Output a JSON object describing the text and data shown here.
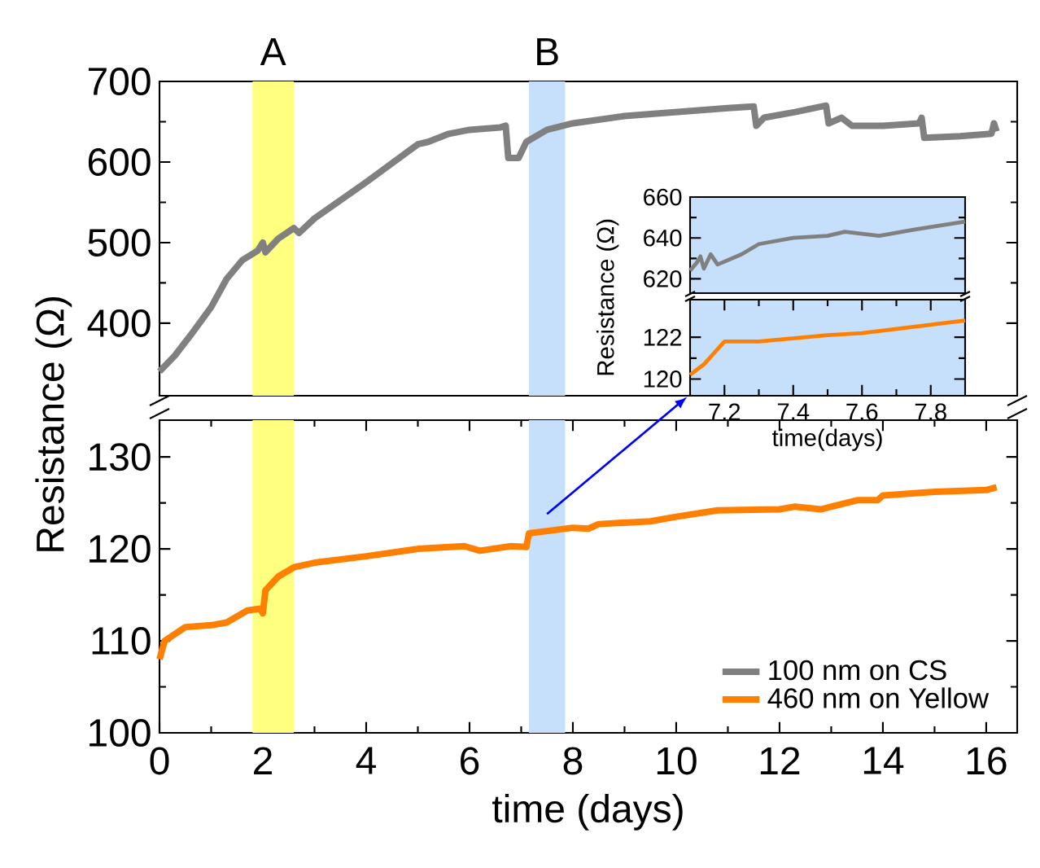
{
  "chart_data": [
    {
      "type": "line",
      "xlim": [
        0,
        16.6
      ],
      "ylim": [
        310,
        700
      ],
      "yticks": [
        400,
        500,
        600,
        700
      ],
      "tick_labels": "y",
      "bands": [
        {
          "axis": "x",
          "from": 1.8,
          "to": 2.6,
          "label": "A",
          "color": "#ffff80"
        },
        {
          "axis": "x",
          "from": 7.15,
          "to": 7.85,
          "label": "B",
          "color": "#c6e0fb"
        }
      ],
      "series": [
        {
          "name": "100 nm on CS",
          "color": "#808080",
          "x": [
            0,
            0.3,
            0.6,
            1.0,
            1.3,
            1.6,
            1.9,
            2.0,
            2.05,
            2.3,
            2.6,
            2.7,
            3.0,
            4.0,
            5.0,
            5.2,
            5.6,
            6.0,
            6.6,
            6.7,
            6.75,
            6.95,
            7.1,
            7.5,
            8.0,
            9.0,
            10.0,
            11.0,
            11.5,
            11.55,
            11.7,
            12.3,
            12.9,
            12.95,
            13.2,
            13.4,
            14.0,
            14.7,
            14.75,
            14.8,
            15.5,
            16.1,
            16.15,
            16.2
          ],
          "values": [
            340,
            360,
            385,
            420,
            455,
            478,
            490,
            500,
            488,
            505,
            518,
            512,
            530,
            575,
            622,
            625,
            635,
            640,
            643,
            645,
            605,
            605,
            625,
            640,
            648,
            657,
            662,
            667,
            669,
            645,
            655,
            662,
            670,
            648,
            655,
            645,
            645,
            648,
            655,
            630,
            632,
            635,
            648,
            638
          ]
        }
      ]
    },
    {
      "type": "line",
      "xlim": [
        0,
        16.6
      ],
      "ylim": [
        100,
        134
      ],
      "xticks": [
        0,
        2,
        4,
        6,
        8,
        10,
        12,
        14,
        16
      ],
      "yticks": [
        100,
        110,
        120,
        130
      ],
      "xlabel": "time (days)",
      "ylabel": "Resistance (Ω)",
      "legend": "bottom right",
      "bands": [
        {
          "axis": "x",
          "from": 1.8,
          "to": 2.6,
          "color": "#ffff80"
        },
        {
          "axis": "x",
          "from": 7.15,
          "to": 7.85,
          "color": "#c6e0fb"
        }
      ],
      "series": [
        {
          "name": "460 nm on Yellow",
          "color": "#ff8000",
          "x": [
            0,
            0.1,
            0.5,
            1.0,
            1.3,
            1.7,
            1.95,
            2.0,
            2.05,
            2.3,
            2.6,
            3.0,
            4.0,
            5.0,
            5.9,
            6.2,
            6.8,
            7.1,
            7.15,
            8.0,
            8.3,
            8.5,
            9.5,
            10.0,
            10.8,
            12.0,
            12.3,
            12.8,
            13.5,
            13.9,
            14.0,
            15.0,
            16.0,
            16.2
          ],
          "values": [
            108,
            110,
            111.5,
            111.7,
            112,
            113.3,
            113.5,
            113,
            115.5,
            117,
            118,
            118.5,
            119.2,
            120,
            120.3,
            119.8,
            120.3,
            120.2,
            121.7,
            122.3,
            122.2,
            122.7,
            123,
            123.5,
            124.2,
            124.3,
            124.6,
            124.3,
            125.3,
            125.3,
            125.8,
            126.2,
            126.4,
            126.7
          ]
        }
      ]
    },
    {
      "type": "line",
      "xlim": [
        7.1,
        7.9
      ],
      "ylim": [
        613,
        660
      ],
      "yticks": [
        620,
        640,
        660
      ],
      "tick_labels": "y",
      "ylabel": "Resistance (Ω)",
      "series": [
        {
          "color": "#808080",
          "x": [
            7.1,
            7.12,
            7.13,
            7.14,
            7.16,
            7.18,
            7.25,
            7.27,
            7.3,
            7.4,
            7.5,
            7.55,
            7.65,
            7.75,
            7.9
          ],
          "values": [
            624,
            628,
            631,
            625,
            632,
            627,
            632,
            634,
            637,
            640,
            641,
            643,
            641,
            644,
            648
          ]
        }
      ]
    },
    {
      "type": "line",
      "xlim": [
        7.1,
        7.9
      ],
      "ylim": [
        119.2,
        123.8
      ],
      "xticks": [
        7.2,
        7.4,
        7.6,
        7.8
      ],
      "yticks": [
        120,
        122
      ],
      "xlabel": "time(days)",
      "series": [
        {
          "color": "#ff8000",
          "x": [
            7.1,
            7.14,
            7.2,
            7.3,
            7.5,
            7.6,
            7.75,
            7.9
          ],
          "values": [
            120.2,
            120.7,
            121.8,
            121.8,
            122.1,
            122.2,
            122.5,
            122.8
          ]
        }
      ]
    }
  ]
}
